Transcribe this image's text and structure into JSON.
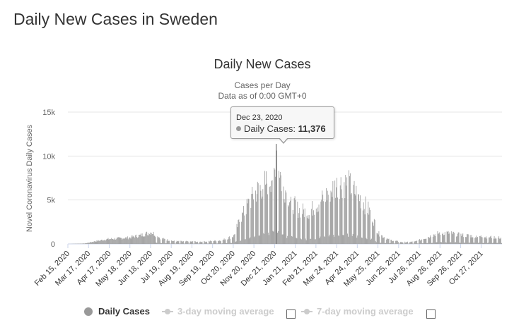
{
  "page": {
    "title": "Daily New Cases in Sweden"
  },
  "colors": {
    "series": "#999999",
    "grid": "#e6e6e6",
    "axis": "#ccd6eb",
    "text": "#333333",
    "muted": "#666666",
    "disabled": "#cccccc"
  },
  "legend": {
    "items": [
      {
        "label": "Daily Cases",
        "icon": "filled-circle-icon",
        "color": "#999999"
      },
      {
        "label": "3-day moving average",
        "icon": "line-marker-icon",
        "color": "#cccccc"
      },
      {
        "label": "7-day moving average",
        "icon": "line-marker-icon",
        "color": "#cccccc"
      }
    ]
  },
  "tooltip": {
    "date": "Dec 23, 2020",
    "series_label": "Daily Cases:",
    "value": "11,376"
  },
  "chart_data": {
    "type": "bar",
    "title": "Daily New Cases",
    "subtitle_line1": "Cases per Day",
    "subtitle_line2": "Data as of 0:00 GMT+0",
    "ylabel": "Novel Coronavirus Daily Cases",
    "xlabel": "",
    "ylim": [
      0,
      15000
    ],
    "yticks": [
      0,
      5000,
      10000,
      15000
    ],
    "ytick_labels": [
      "0",
      "5k",
      "10k",
      "15k"
    ],
    "xticks": [
      "Feb 15, 2020",
      "Mar 17, 2020",
      "Apr 17, 2020",
      "May 18, 2020",
      "Jun 18, 2020",
      "Jul 19, 2020",
      "Aug 19, 2020",
      "Sep 19, 2020",
      "Oct 20, 2020",
      "Nov 20, 2020",
      "Dec 21, 2020",
      "Jan 21, 2021",
      "Feb 21, 2021",
      "Mar 24, 2021",
      "Apr 24, 2021",
      "May 25, 2021",
      "Jun 25, 2021",
      "Jul 26, 2021",
      "Aug 26, 2021",
      "Sep 26, 2021",
      "Oct 27, 2021"
    ],
    "start_date": "Feb 15, 2020",
    "days": 651,
    "series": [
      {
        "name": "Daily Cases",
        "approx_daily_profile": [
          [
            0,
            0
          ],
          [
            25,
            50
          ],
          [
            40,
            300
          ],
          [
            60,
            550
          ],
          [
            90,
            700
          ],
          [
            110,
            1000
          ],
          [
            125,
            1350
          ],
          [
            130,
            1100
          ],
          [
            140,
            600
          ],
          [
            160,
            300
          ],
          [
            200,
            250
          ],
          [
            230,
            400
          ],
          [
            248,
            900
          ],
          [
            258,
            2800
          ],
          [
            270,
            4500
          ],
          [
            280,
            5800
          ],
          [
            290,
            6500
          ],
          [
            300,
            7200
          ],
          [
            310,
            8300
          ],
          [
            312,
            11376
          ],
          [
            320,
            7000
          ],
          [
            335,
            4800
          ],
          [
            345,
            3900
          ],
          [
            360,
            3600
          ],
          [
            375,
            4600
          ],
          [
            390,
            5800
          ],
          [
            405,
            6800
          ],
          [
            420,
            6900
          ],
          [
            440,
            5000
          ],
          [
            455,
            3400
          ],
          [
            465,
            1200
          ],
          [
            480,
            500
          ],
          [
            500,
            200
          ],
          [
            520,
            250
          ],
          [
            540,
            800
          ],
          [
            550,
            1100
          ],
          [
            560,
            1300
          ],
          [
            575,
            1200
          ],
          [
            590,
            1000
          ],
          [
            610,
            900
          ],
          [
            630,
            800
          ],
          [
            650,
            700
          ]
        ],
        "annotated_point": {
          "date": "Dec 23, 2020",
          "value": 11376
        }
      }
    ]
  }
}
